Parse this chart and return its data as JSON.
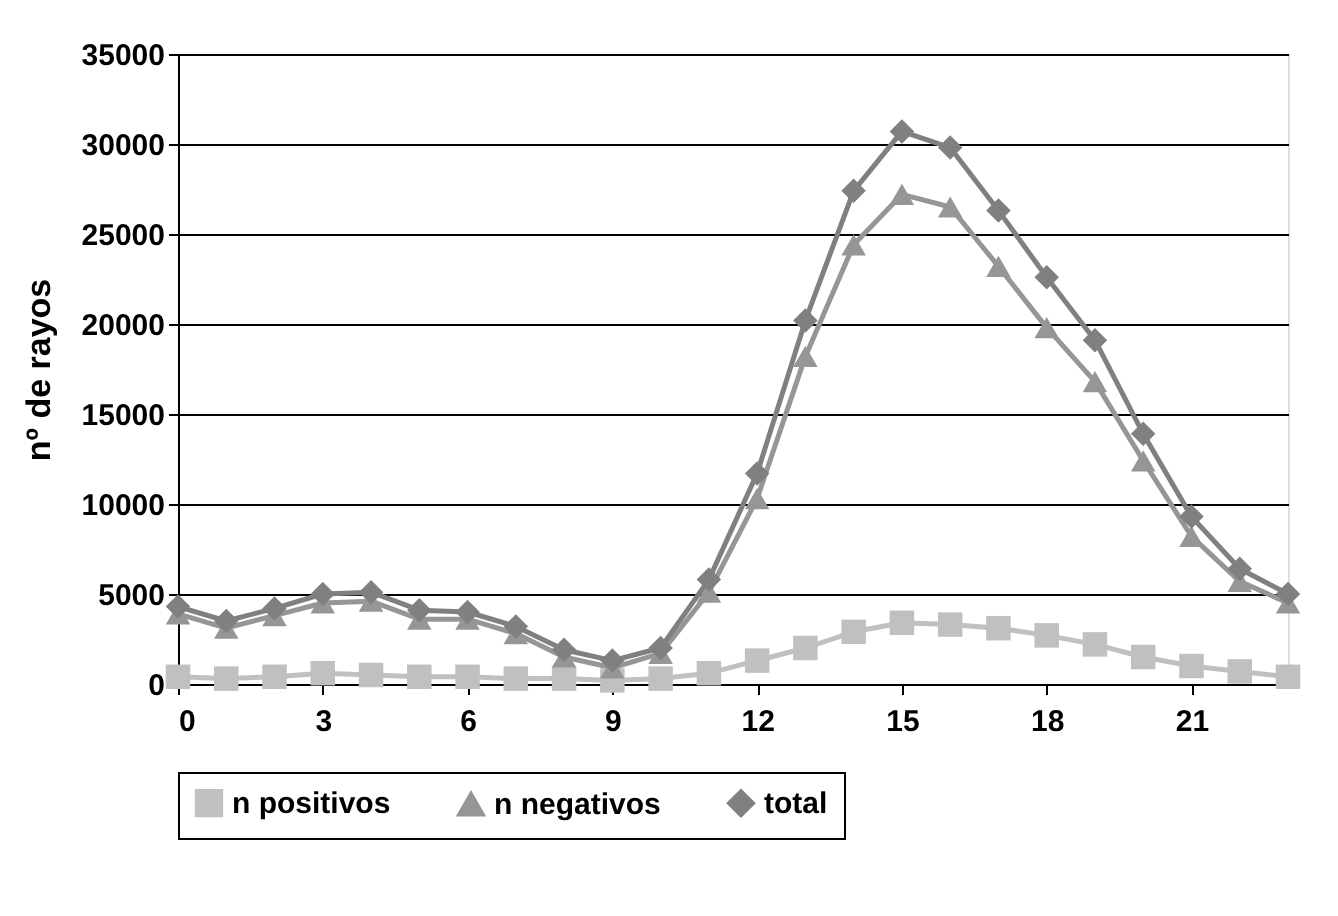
{
  "chart_data": {
    "type": "line",
    "ylabel": "nº de rayos",
    "x": [
      0,
      1,
      2,
      3,
      4,
      5,
      6,
      7,
      8,
      9,
      10,
      11,
      12,
      13,
      14,
      15,
      16,
      17,
      18,
      19,
      20,
      21,
      22,
      23
    ],
    "xlim": [
      0,
      23
    ],
    "xticks": [
      0,
      3,
      6,
      9,
      12,
      15,
      18,
      21
    ],
    "ylim": [
      0,
      35000
    ],
    "yticks": [
      0,
      5000,
      10000,
      15000,
      20000,
      25000,
      30000,
      35000
    ],
    "grid": "y",
    "legend": "bottom",
    "line_style": "solid",
    "series": [
      {
        "name": "n positivos",
        "color": "#c0c0c0",
        "marker": "square",
        "values": [
          400,
          300,
          400,
          600,
          500,
          400,
          400,
          300,
          300,
          200,
          300,
          600,
          1300,
          2000,
          2900,
          3400,
          3300,
          3100,
          2700,
          2200,
          1500,
          1000,
          700,
          400
        ]
      },
      {
        "name": "n negativos",
        "color": "#969696",
        "marker": "triangle",
        "values": [
          3900,
          3100,
          3800,
          4500,
          4600,
          3600,
          3600,
          2800,
          1500,
          900,
          1700,
          5100,
          10300,
          18200,
          24400,
          27200,
          26500,
          23200,
          19800,
          16800,
          12400,
          8200,
          5700,
          4500
        ]
      },
      {
        "name": "total",
        "color": "#808080",
        "marker": "diamond",
        "values": [
          4300,
          3500,
          4200,
          5000,
          5100,
          4100,
          4000,
          3200,
          1900,
          1300,
          2000,
          5800,
          11700,
          20200,
          27400,
          30700,
          29800,
          26300,
          22600,
          19100,
          13900,
          9300,
          6400,
          5000
        ]
      }
    ]
  }
}
